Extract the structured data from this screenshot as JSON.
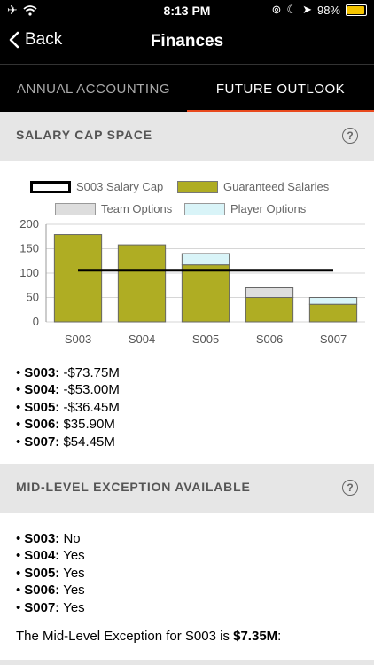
{
  "status_bar": {
    "time": "8:13 PM",
    "battery": "98%",
    "battery_level": 0.98
  },
  "nav": {
    "back_label": "Back",
    "title": "Finances"
  },
  "tabs": [
    {
      "label": "ANNUAL ACCOUNTING",
      "active": false
    },
    {
      "label": "FUTURE OUTLOOK",
      "active": true
    }
  ],
  "salary_cap": {
    "title": "SALARY CAP SPACE",
    "items": [
      {
        "season": "S003:",
        "value": "-$73.75M"
      },
      {
        "season": "S004:",
        "value": "-$53.00M"
      },
      {
        "season": "S005:",
        "value": "-$36.45M"
      },
      {
        "season": "S006:",
        "value": "$35.90M"
      },
      {
        "season": "S007:",
        "value": "$54.45M"
      }
    ]
  },
  "chart_data": {
    "type": "bar",
    "categories": [
      "S003",
      "S004",
      "S005",
      "S006",
      "S007"
    ],
    "series": [
      {
        "name": "Guaranteed Salaries",
        "values": [
          179,
          158,
          117,
          50,
          36
        ],
        "color": "#afad23"
      },
      {
        "name": "Team Options",
        "values": [
          0,
          0,
          0,
          20,
          0
        ],
        "color": "#dddddd"
      },
      {
        "name": "Player Options",
        "values": [
          0,
          0,
          23,
          0,
          14
        ],
        "color": "#d9f4f8"
      }
    ],
    "salary_cap_line": {
      "name": "S003 Salary Cap",
      "value": 106
    },
    "ylim": [
      0,
      200
    ],
    "yticks": [
      "0",
      "50",
      "100",
      "150",
      "200"
    ],
    "grid": true,
    "legend": "top"
  },
  "mle": {
    "title": "MID-LEVEL EXCEPTION AVAILABLE",
    "items": [
      {
        "season": "S003:",
        "value": "No"
      },
      {
        "season": "S004:",
        "value": "Yes"
      },
      {
        "season": "S005:",
        "value": "Yes"
      },
      {
        "season": "S006:",
        "value": "Yes"
      },
      {
        "season": "S007:",
        "value": "Yes"
      }
    ],
    "note_prefix": "The Mid-Level Exception for S003 is ",
    "note_amount": "$7.35M",
    "note_suffix": ":"
  }
}
